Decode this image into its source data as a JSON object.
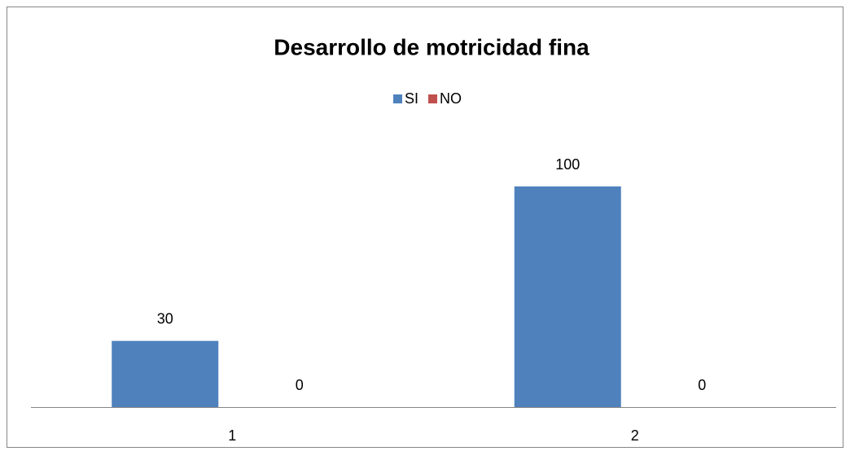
{
  "chart_data": {
    "type": "bar",
    "title": "Desarrollo de motricidad fina",
    "categories": [
      "1",
      "2"
    ],
    "series": [
      {
        "name": "SI",
        "color": "#4f81bd",
        "values": [
          30,
          100
        ]
      },
      {
        "name": "NO",
        "color": "#c0504d",
        "values": [
          0,
          0
        ]
      }
    ]
  }
}
